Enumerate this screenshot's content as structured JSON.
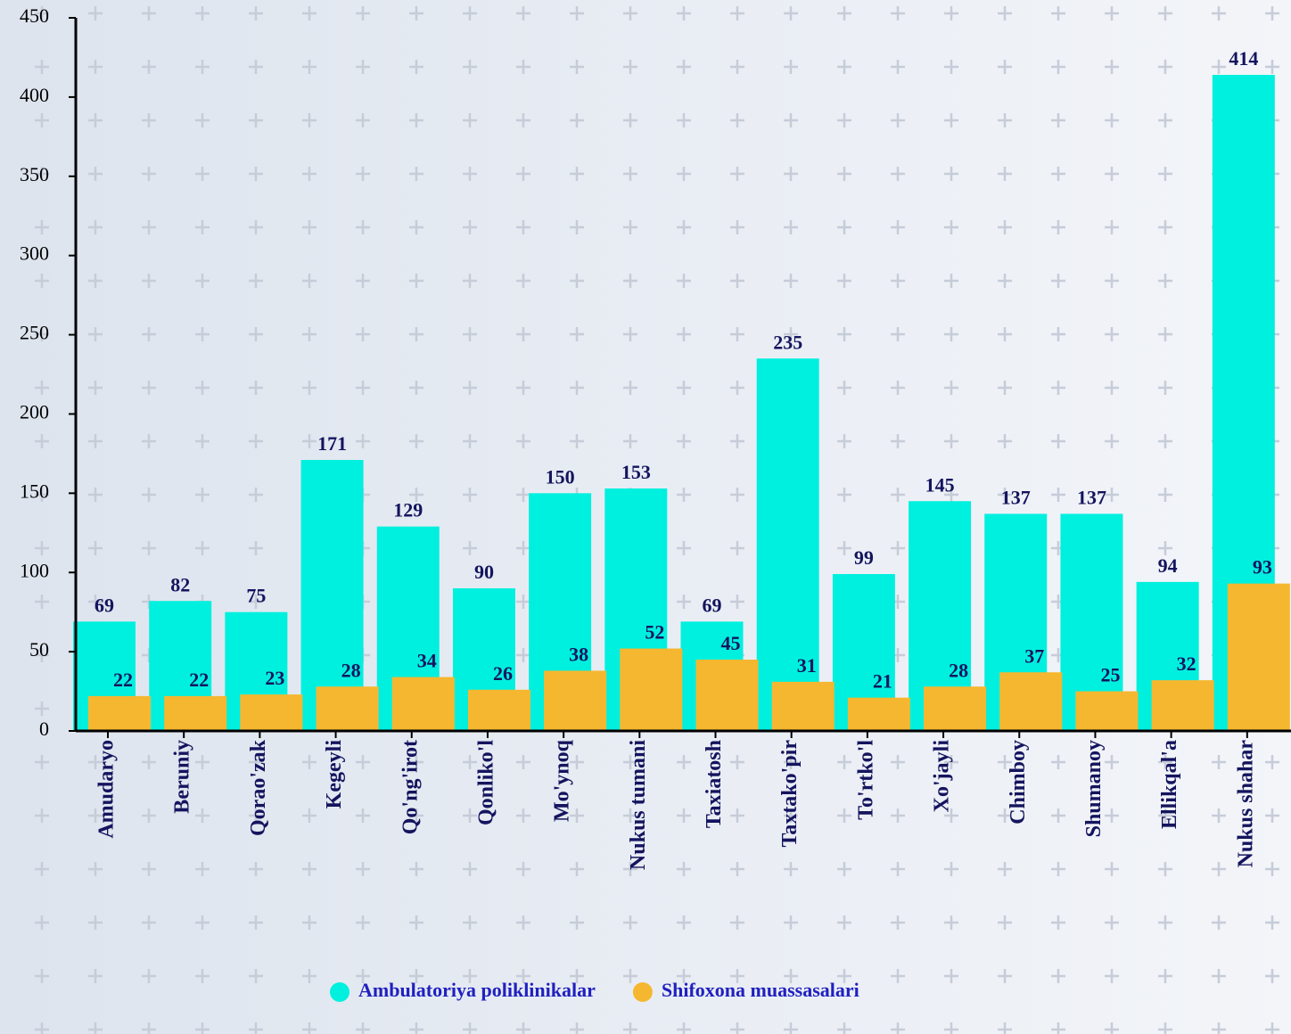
{
  "chart_data": {
    "type": "bar",
    "categories": [
      "Amudaryo",
      "Beruniy",
      "Qorao'zak",
      "Kegeyli",
      "Qo'ng'irot",
      "Qonliko'l",
      "Mo'ynoq",
      "Nukus tumani",
      "Taxiatosh",
      "Taxtako'pir",
      "To'rtko'l",
      "Xo'jayli",
      "Chimboy",
      "Shumanoy",
      "Ellikqal'a",
      "Nukus shahar"
    ],
    "series": [
      {
        "name": "Ambulatoriya poliklinikalar",
        "color": "#00f0df",
        "values": [
          69,
          82,
          75,
          171,
          129,
          90,
          150,
          153,
          69,
          235,
          99,
          145,
          137,
          137,
          94,
          414
        ]
      },
      {
        "name": "Shifoxona muassasalari",
        "color": "#f5b730",
        "values": [
          22,
          22,
          23,
          28,
          34,
          26,
          38,
          52,
          45,
          31,
          21,
          28,
          37,
          25,
          32,
          93
        ]
      }
    ],
    "ylim": [
      0,
      450
    ],
    "yticks": [
      0,
      50,
      100,
      150,
      200,
      250,
      300,
      350,
      400,
      450
    ],
    "grid": false,
    "legend": "bottom"
  }
}
